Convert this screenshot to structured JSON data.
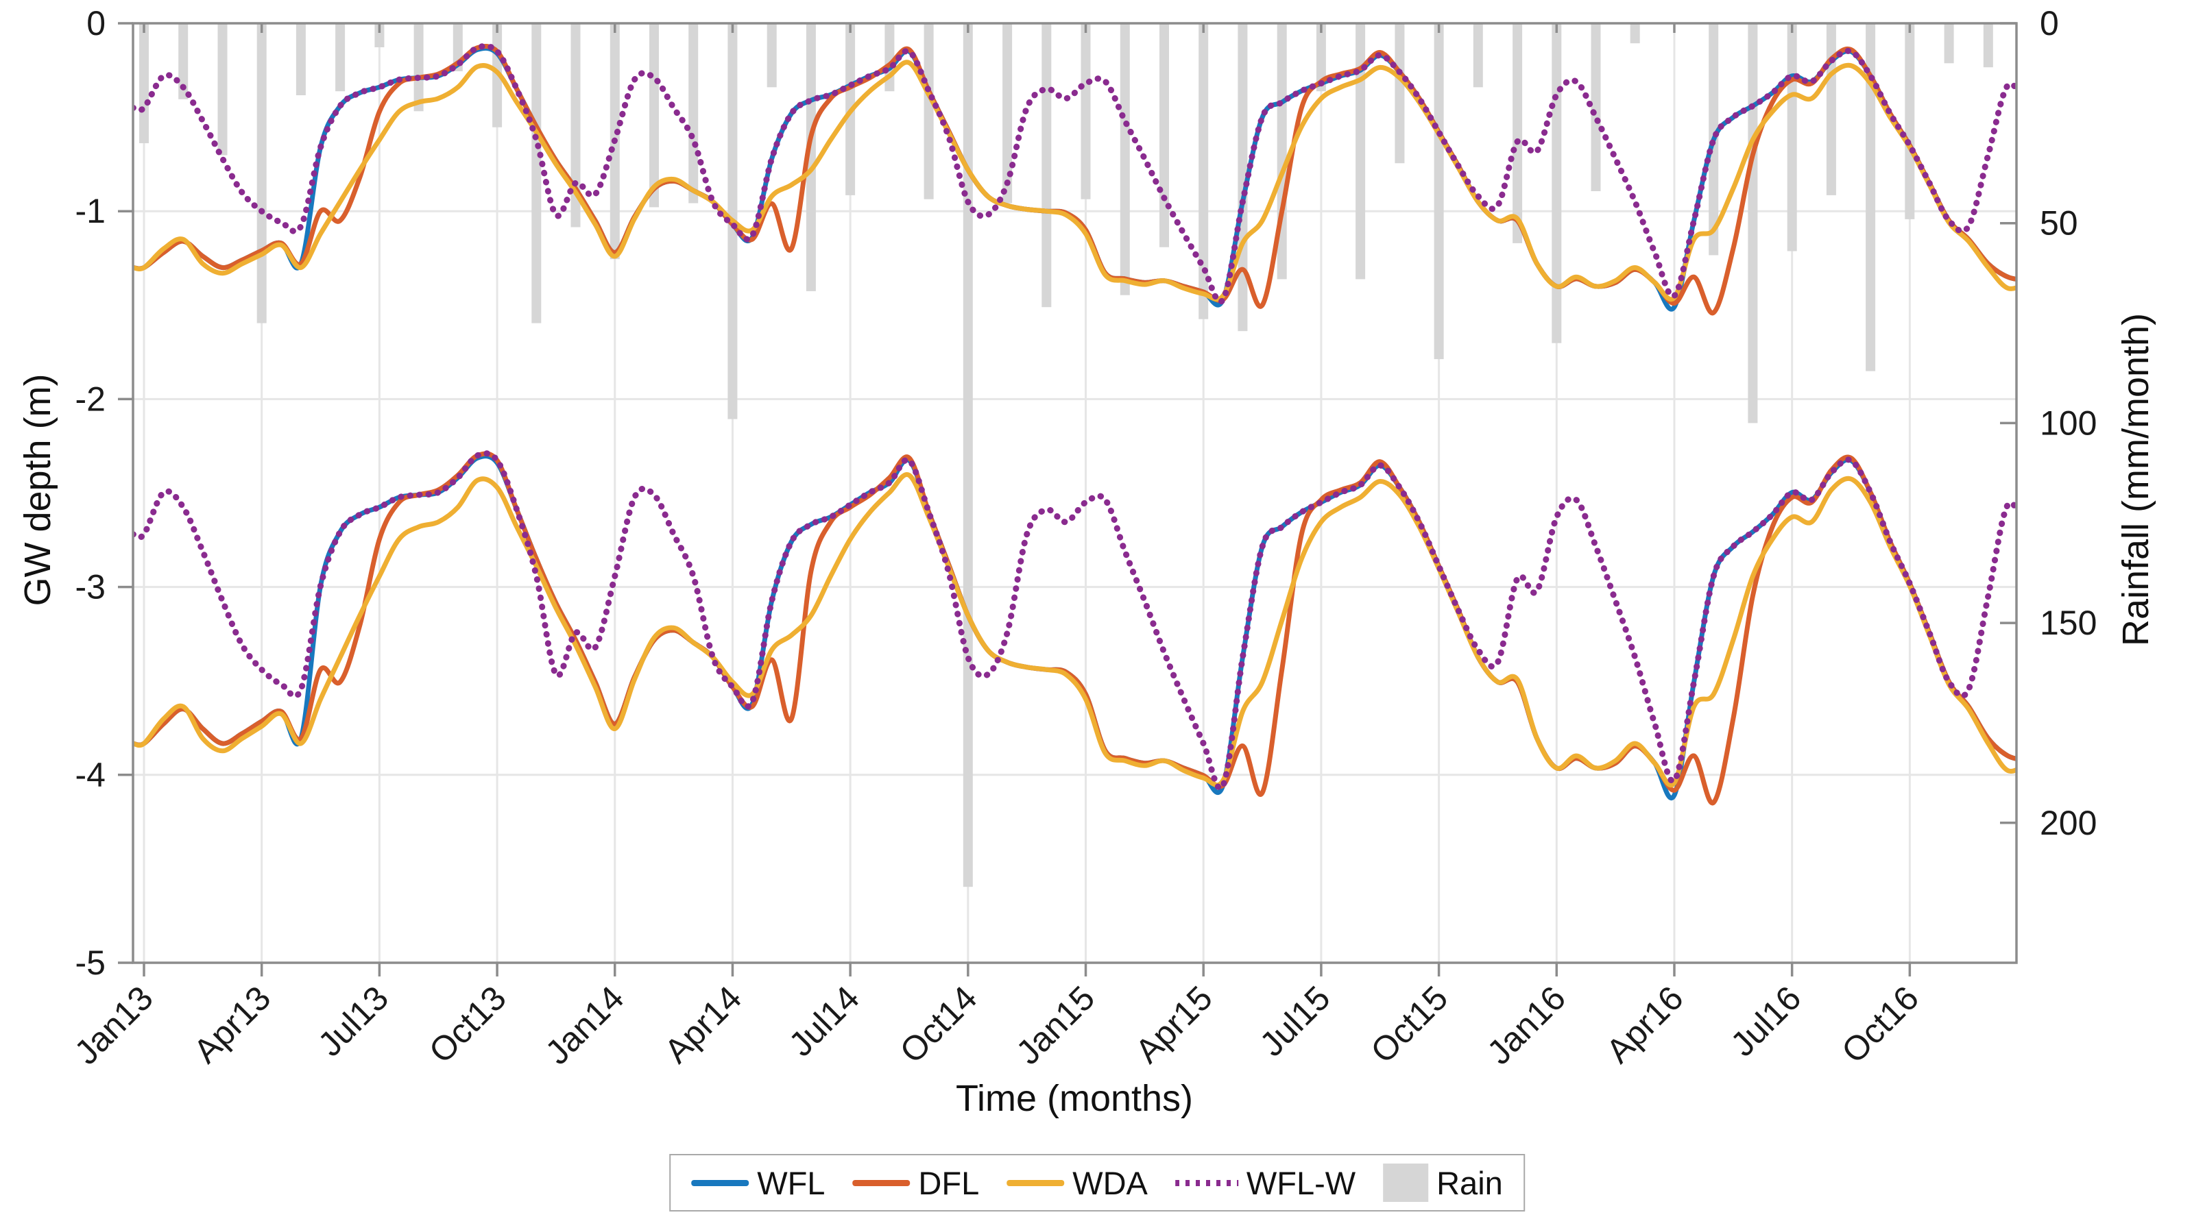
{
  "figure": {
    "type_hint": "matlab-style groundwater simulation figure"
  },
  "chart_data": {
    "type": "line+bar",
    "title": "",
    "xlabel": "Time (months)",
    "ylabel_left": "GW depth (m)",
    "ylabel_right": "Rainfall (mm/month)",
    "x_tick_labels": [
      "Jan13",
      "Apr13",
      "Jul13",
      "Oct13",
      "Jan14",
      "Apr14",
      "Jul14",
      "Oct14",
      "Jan15",
      "Apr15",
      "Jul15",
      "Oct15",
      "Jan16",
      "Apr16",
      "Jul16",
      "Oct16"
    ],
    "x_tick_months": [
      0,
      3,
      6,
      9,
      12,
      15,
      18,
      21,
      24,
      27,
      30,
      33,
      36,
      39,
      42,
      45
    ],
    "time_step_months": 0.5,
    "ylim_left": [
      0,
      -5
    ],
    "yticks_left": [
      0,
      -1,
      -2,
      -3,
      -4,
      -5
    ],
    "ylim_right": [
      0,
      235
    ],
    "yticks_right": [
      0,
      50,
      100,
      150,
      200
    ],
    "grid": true,
    "legend_position": "below",
    "colors": {
      "WFL": "#1878BE",
      "DFL": "#D95F2C",
      "WDA": "#EFAF32",
      "WFL-W": "#8A2B8F",
      "Rain": "#D6D6D6",
      "grid": "#E6E6E6",
      "axis": "#8C8C8C",
      "text": "#1A1A1A"
    },
    "legend": [
      {
        "label": "WFL",
        "style": "line",
        "color": "#1878BE"
      },
      {
        "label": "DFL",
        "style": "line",
        "color": "#D95F2C"
      },
      {
        "label": "WDA",
        "style": "line",
        "color": "#EFAF32"
      },
      {
        "label": "WFL-W",
        "style": "dotted",
        "color": "#8A2B8F"
      },
      {
        "label": "Rain",
        "style": "patch",
        "color": "#D6D6D6"
      }
    ],
    "series_upper": {
      "WFL": [
        -1.3,
        -1.22,
        -1.16,
        -1.24,
        -1.3,
        -1.26,
        -1.21,
        -1.17,
        -1.28,
        -0.66,
        -0.44,
        -0.37,
        -0.34,
        -0.3,
        -0.29,
        -0.28,
        -0.22,
        -0.14,
        -0.16,
        -0.35,
        -0.55,
        -0.73,
        -0.88,
        -1.05,
        -1.22,
        -1.03,
        -0.88,
        -0.84,
        -0.89,
        -0.95,
        -1.07,
        -1.14,
        -0.72,
        -0.48,
        -0.41,
        -0.38,
        -0.33,
        -0.28,
        -0.24,
        -0.15,
        -0.36,
        -0.57,
        -0.78,
        -0.92,
        -0.97,
        -0.99,
        -1.0,
        -1.01,
        -1.1,
        -1.33,
        -1.36,
        -1.38,
        -1.37,
        -1.4,
        -1.43,
        -1.47,
        -0.95,
        -0.5,
        -0.42,
        -0.36,
        -0.32,
        -0.28,
        -0.25,
        -0.17,
        -0.26,
        -0.4,
        -0.58,
        -0.76,
        -0.95,
        -1.05,
        -1.05,
        -1.28,
        -1.4,
        -1.36,
        -1.4,
        -1.38,
        -1.31,
        -1.38,
        -1.51,
        -1.05,
        -0.62,
        -0.5,
        -0.44,
        -0.37,
        -0.28,
        -0.31,
        -0.2,
        -0.15,
        -0.28,
        -0.48,
        -0.65,
        -0.85,
        -1.05,
        -1.15,
        -1.28,
        -1.35,
        -1.37
      ],
      "DFL": [
        -1.3,
        -1.22,
        -1.16,
        -1.24,
        -1.3,
        -1.26,
        -1.21,
        -1.17,
        -1.28,
        -1.0,
        -1.05,
        -0.82,
        -0.47,
        -0.32,
        -0.29,
        -0.27,
        -0.21,
        -0.13,
        -0.15,
        -0.35,
        -0.55,
        -0.73,
        -0.88,
        -1.05,
        -1.22,
        -1.03,
        -0.88,
        -0.84,
        -0.89,
        -0.95,
        -1.07,
        -1.15,
        -0.96,
        -1.2,
        -0.6,
        -0.4,
        -0.34,
        -0.29,
        -0.22,
        -0.14,
        -0.36,
        -0.57,
        -0.78,
        -0.92,
        -0.97,
        -0.99,
        -1.0,
        -1.01,
        -1.1,
        -1.33,
        -1.36,
        -1.38,
        -1.37,
        -1.4,
        -1.43,
        -1.47,
        -1.31,
        -1.5,
        -1.0,
        -0.45,
        -0.31,
        -0.27,
        -0.24,
        -0.155,
        -0.26,
        -0.4,
        -0.58,
        -0.76,
        -0.95,
        -1.05,
        -1.05,
        -1.28,
        -1.4,
        -1.36,
        -1.4,
        -1.38,
        -1.31,
        -1.38,
        -1.49,
        -1.35,
        -1.54,
        -1.2,
        -0.7,
        -0.42,
        -0.3,
        -0.32,
        -0.19,
        -0.14,
        -0.28,
        -0.48,
        -0.65,
        -0.85,
        -1.05,
        -1.15,
        -1.28,
        -1.35,
        -1.37
      ],
      "WDA": [
        -1.3,
        -1.2,
        -1.15,
        -1.28,
        -1.33,
        -1.28,
        -1.23,
        -1.18,
        -1.3,
        -1.12,
        -0.95,
        -0.78,
        -0.62,
        -0.47,
        -0.42,
        -0.4,
        -0.34,
        -0.23,
        -0.26,
        -0.42,
        -0.58,
        -0.75,
        -0.9,
        -1.07,
        -1.24,
        -1.04,
        -0.87,
        -0.83,
        -0.89,
        -0.95,
        -1.05,
        -1.1,
        -0.92,
        -0.86,
        -0.78,
        -0.62,
        -0.47,
        -0.36,
        -0.28,
        -0.21,
        -0.38,
        -0.58,
        -0.78,
        -0.92,
        -0.97,
        -0.99,
        -1.0,
        -1.02,
        -1.12,
        -1.34,
        -1.37,
        -1.39,
        -1.37,
        -1.41,
        -1.44,
        -1.45,
        -1.17,
        -1.05,
        -0.8,
        -0.55,
        -0.4,
        -0.34,
        -0.3,
        -0.235,
        -0.29,
        -0.42,
        -0.59,
        -0.77,
        -0.95,
        -1.05,
        -1.04,
        -1.28,
        -1.4,
        -1.35,
        -1.4,
        -1.37,
        -1.3,
        -1.38,
        -1.46,
        -1.15,
        -1.1,
        -0.88,
        -0.62,
        -0.47,
        -0.38,
        -0.4,
        -0.27,
        -0.225,
        -0.32,
        -0.5,
        -0.66,
        -0.86,
        -1.06,
        -1.16,
        -1.3,
        -1.41,
        -1.38
      ],
      "WFL-W": [
        -0.45,
        -0.28,
        -0.34,
        -0.52,
        -0.72,
        -0.9,
        -1.0,
        -1.06,
        -1.08,
        -0.66,
        -0.44,
        -0.37,
        -0.34,
        -0.3,
        -0.29,
        -0.28,
        -0.22,
        -0.13,
        -0.15,
        -0.35,
        -0.62,
        -1.02,
        -0.85,
        -0.91,
        -0.62,
        -0.3,
        -0.29,
        -0.45,
        -0.62,
        -0.95,
        -1.07,
        -1.13,
        -0.72,
        -0.48,
        -0.41,
        -0.38,
        -0.33,
        -0.28,
        -0.24,
        -0.15,
        -0.36,
        -0.6,
        -0.95,
        -1.02,
        -0.85,
        -0.45,
        -0.35,
        -0.4,
        -0.32,
        -0.31,
        -0.52,
        -0.72,
        -0.93,
        -1.12,
        -1.3,
        -1.47,
        -0.95,
        -0.5,
        -0.42,
        -0.36,
        -0.32,
        -0.28,
        -0.25,
        -0.17,
        -0.26,
        -0.4,
        -0.58,
        -0.76,
        -0.92,
        -0.97,
        -0.63,
        -0.68,
        -0.38,
        -0.31,
        -0.5,
        -0.72,
        -0.95,
        -1.22,
        -1.45,
        -1.05,
        -0.62,
        -0.5,
        -0.44,
        -0.37,
        -0.28,
        -0.31,
        -0.2,
        -0.15,
        -0.28,
        -0.48,
        -0.65,
        -0.85,
        -1.05,
        -1.08,
        -0.7,
        -0.33,
        -0.45
      ]
    },
    "lower_group_transform": {
      "scale": 1.31,
      "offset": -2.13
    },
    "rain_mm_monthly": [
      30,
      19,
      33,
      75,
      18,
      17,
      6,
      22,
      12,
      26,
      75,
      51,
      59,
      46,
      45,
      99,
      16,
      67,
      43,
      17,
      44,
      216,
      45,
      71,
      44,
      68,
      56,
      74,
      77,
      64,
      17,
      64,
      35,
      84,
      16,
      55,
      80,
      42,
      5,
      0,
      58,
      100,
      57,
      43,
      87,
      49,
      10,
      11
    ]
  }
}
